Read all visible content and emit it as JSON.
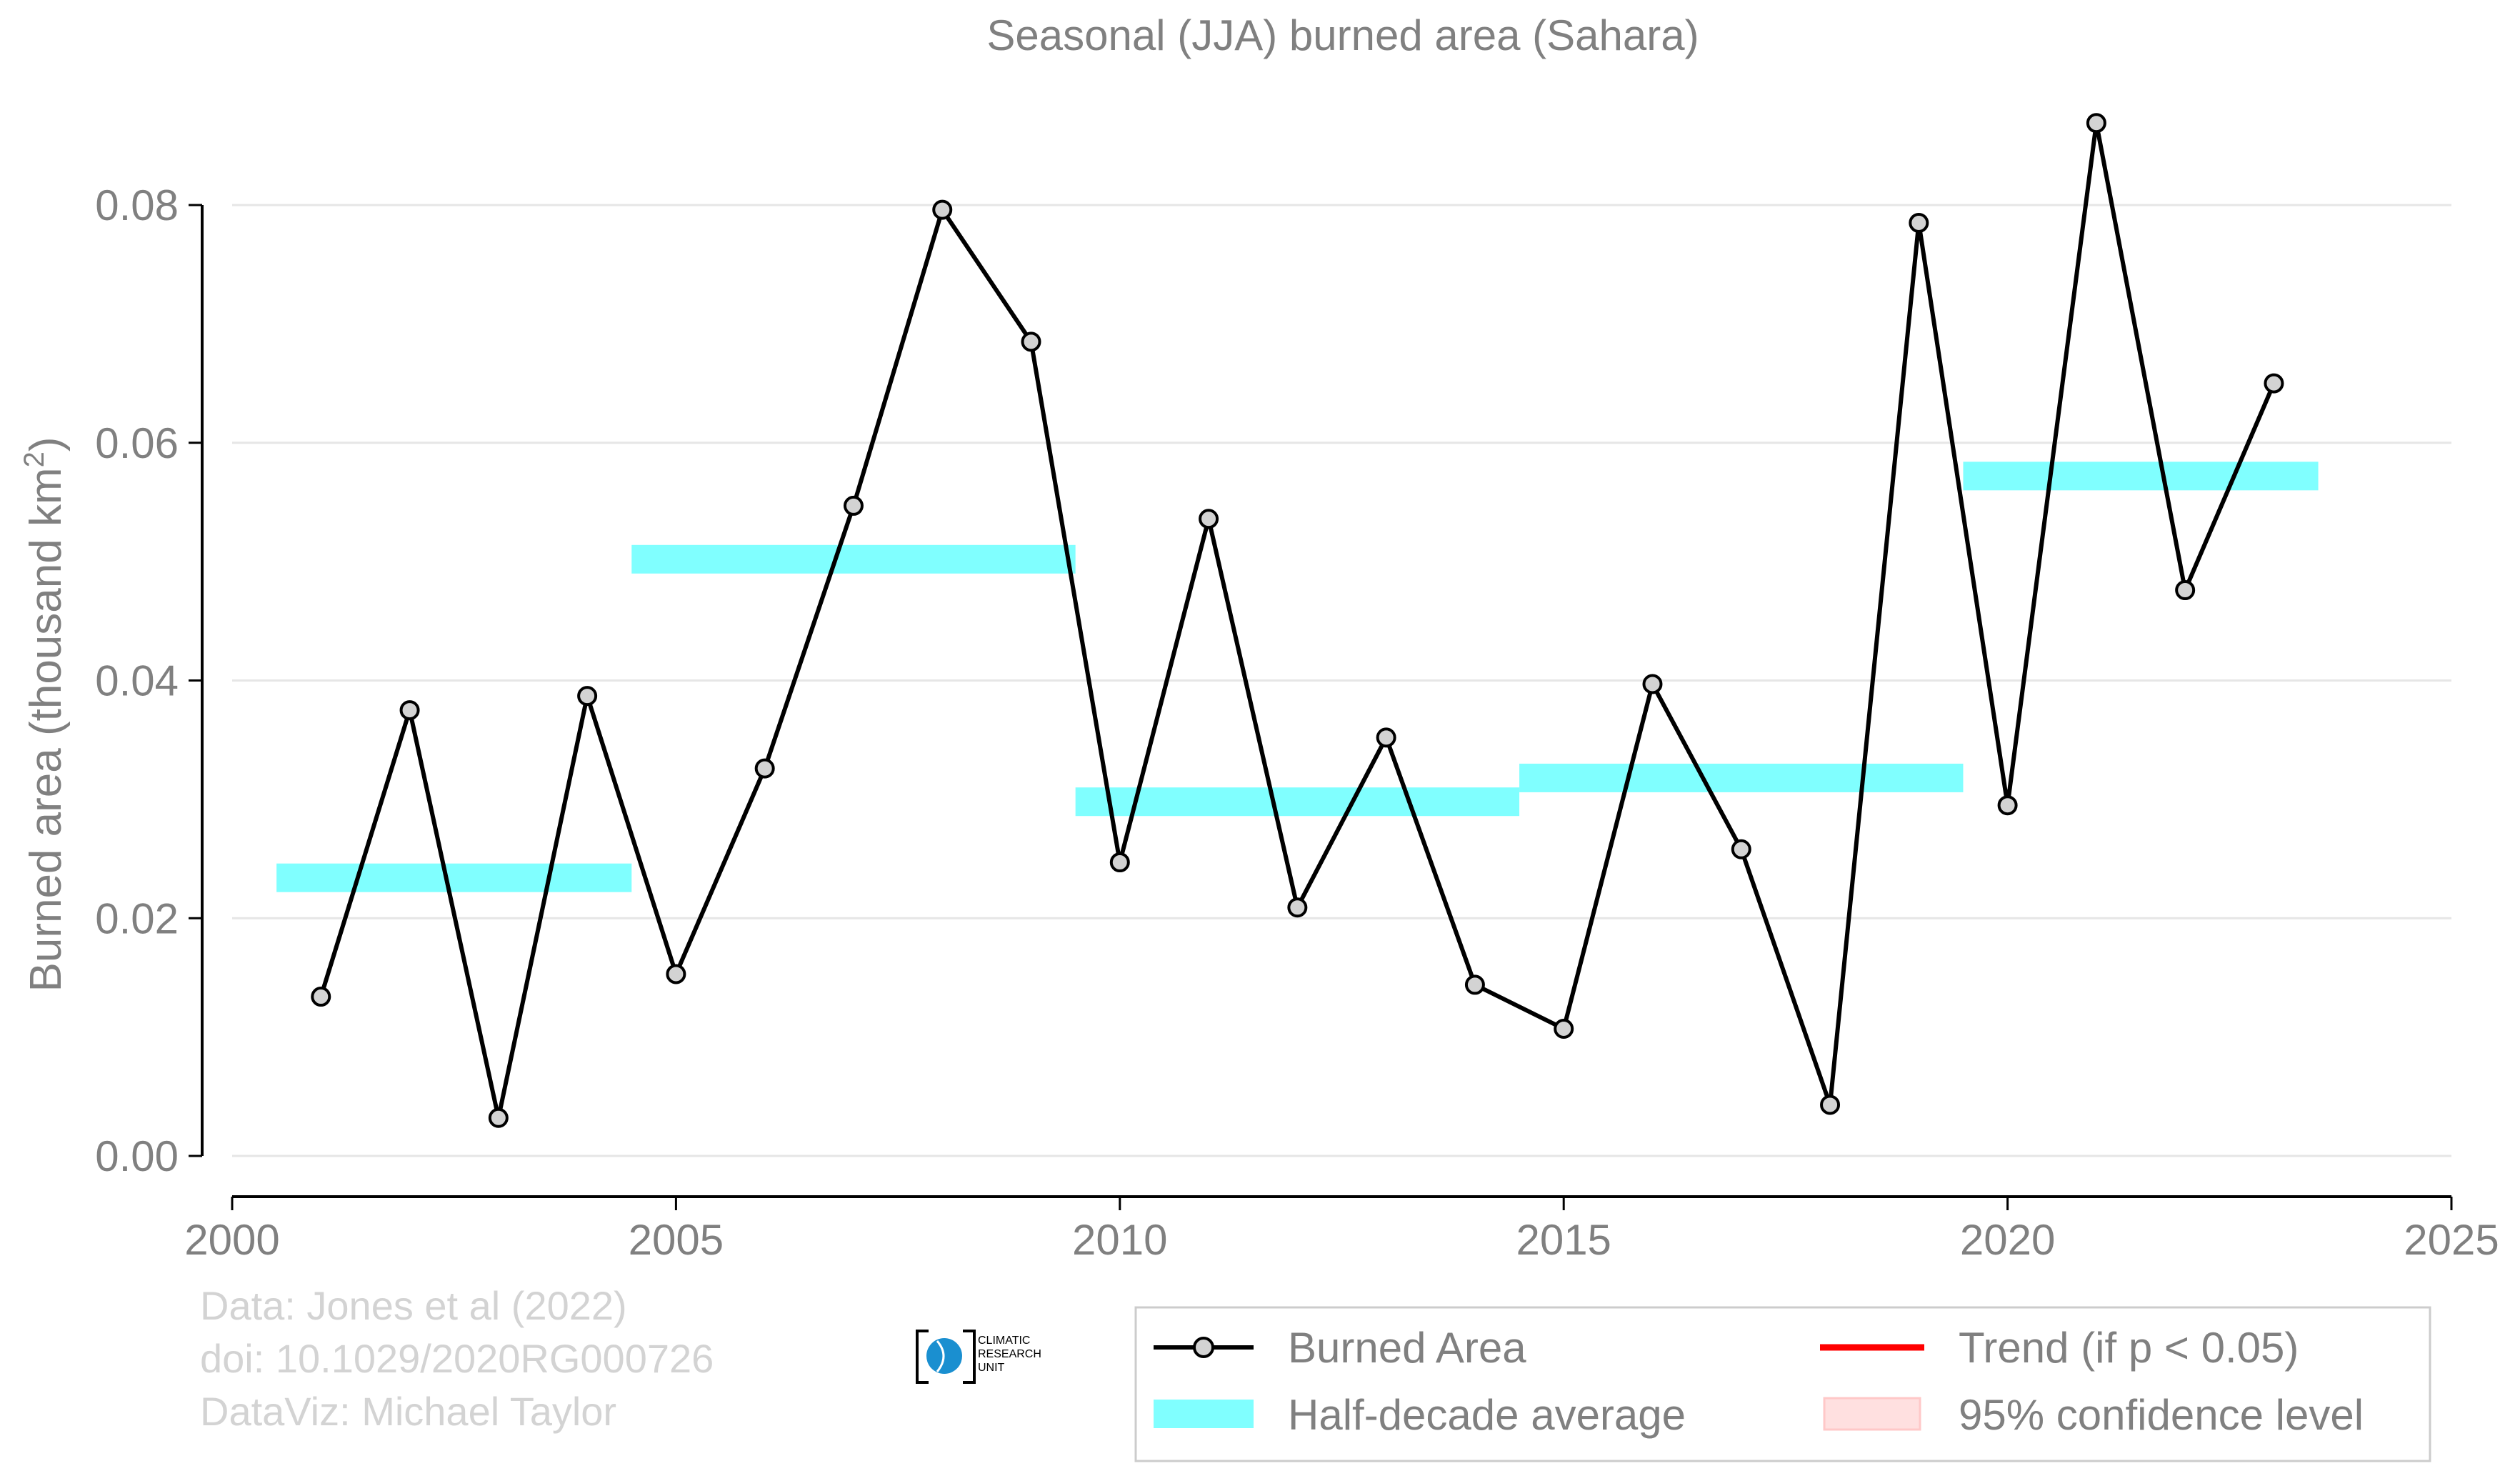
{
  "chart_data": {
    "type": "line",
    "title": "Seasonal (JJA) burned area (Sahara)",
    "ylabel": "Burned area (thousand km",
    "ylabel_sup": "2",
    "ylabel_close": ")",
    "xlabel": "",
    "xlim": [
      2000,
      2025
    ],
    "ylim": [
      0,
      0.08
    ],
    "x_ticks": [
      2000,
      2005,
      2010,
      2015,
      2020,
      2025
    ],
    "y_ticks": [
      0.0,
      0.02,
      0.04,
      0.06,
      0.08
    ],
    "y_tick_labels": [
      "0.00",
      "0.02",
      "0.04",
      "0.06",
      "0.08"
    ],
    "grid": "horizontal",
    "series": [
      {
        "name": "Burned Area",
        "style": "line-with-markers",
        "color": "#000000",
        "marker_fill": "#d3d3d3",
        "x": [
          2001,
          2002,
          2003,
          2004,
          2005,
          2006,
          2007,
          2008,
          2009,
          2010,
          2011,
          2012,
          2013,
          2014,
          2015,
          2016,
          2017,
          2018,
          2019,
          2020,
          2021,
          2022,
          2023
        ],
        "y": [
          0.0134,
          0.0375,
          0.0032,
          0.0387,
          0.0153,
          0.0326,
          0.0547,
          0.0796,
          0.0685,
          0.0247,
          0.0536,
          0.0209,
          0.0352,
          0.0144,
          0.0107,
          0.0397,
          0.0258,
          0.0043,
          0.0785,
          0.0295,
          0.0869,
          0.0476,
          0.065
        ]
      },
      {
        "name": "Half-decade average",
        "style": "step-bars",
        "color": "#80ffff",
        "segments": [
          {
            "x_start": 2000.5,
            "x_end": 2004.5,
            "value": 0.0234
          },
          {
            "x_start": 2004.5,
            "x_end": 2009.5,
            "value": 0.0502
          },
          {
            "x_start": 2009.5,
            "x_end": 2014.5,
            "value": 0.0298
          },
          {
            "x_start": 2014.5,
            "x_end": 2019.5,
            "value": 0.0318
          },
          {
            "x_start": 2019.5,
            "x_end": 2023.5,
            "value": 0.0572
          }
        ]
      }
    ],
    "legend": {
      "position": "bottom-right",
      "items": [
        {
          "label": "Burned Area",
          "kind": "line-marker",
          "color": "#000000"
        },
        {
          "label": "Trend (if p < 0.05)",
          "kind": "line",
          "color": "#ff0000"
        },
        {
          "label": "Half-decade average",
          "kind": "patch",
          "color": "#80ffff"
        },
        {
          "label": "95% confidence level",
          "kind": "patch",
          "color": "#ffe0e0"
        }
      ]
    },
    "annotations": [
      "Data: Jones et al (2022)",
      "doi: 10.1029/2020RG000726",
      "DataViz: Michael Taylor"
    ]
  },
  "logo": {
    "name": "climatic-research-unit-logo",
    "lines": [
      "CLIMATIC",
      "RESEARCH",
      "UNIT"
    ],
    "color": "#1a8fd0"
  },
  "colors": {
    "text": "#808080",
    "credit_text": "#d3d3d3",
    "grid": "#e6e6e6",
    "axis": "#000000"
  }
}
